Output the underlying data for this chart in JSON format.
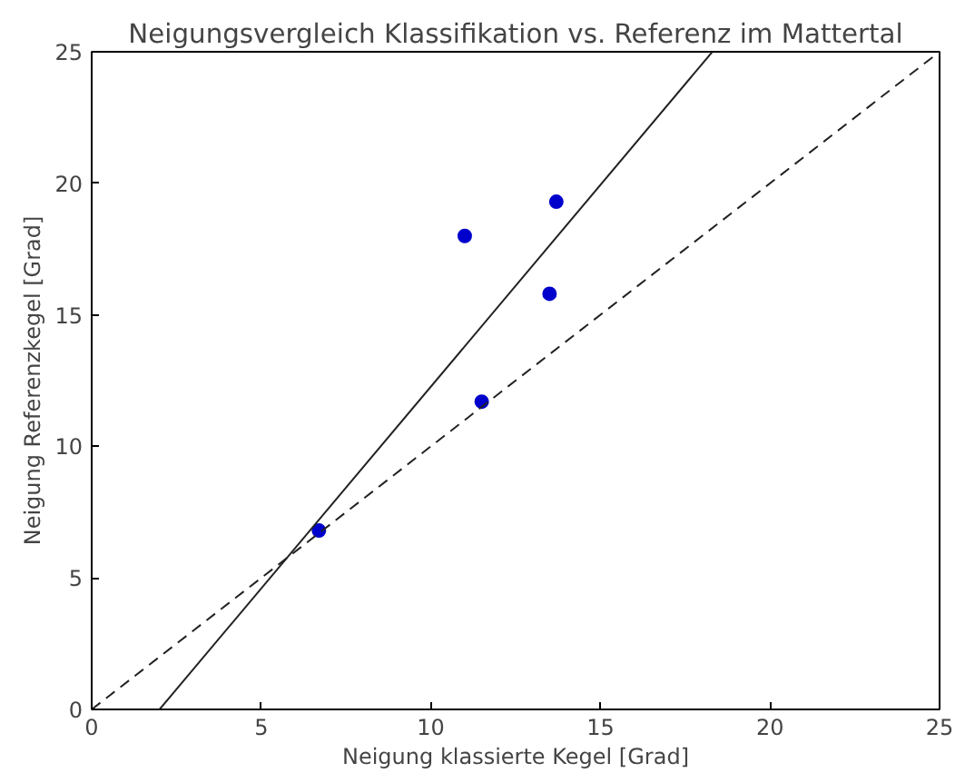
{
  "chart_data": {
    "type": "scatter",
    "title": "Neigungsvergleich Klassifikation vs. Referenz im Mattertal",
    "xlabel": "Neigung klassierte Kegel [Grad]",
    "ylabel": "Neigung Referenzkegel [Grad]",
    "xlim": [
      0,
      25
    ],
    "ylim": [
      0,
      25
    ],
    "xticks": [
      0,
      5,
      10,
      15,
      20,
      25
    ],
    "yticks": [
      0,
      5,
      10,
      15,
      20,
      25
    ],
    "grid": false,
    "marker": "circle",
    "series": [
      {
        "color": "#0000cc",
        "x": [
          6.7,
          11.5,
          11.0,
          13.5,
          13.7
        ],
        "values": [
          6.8,
          11.7,
          18.0,
          15.8,
          19.3
        ]
      },
      {
        "type": "line",
        "color": "#222222",
        "line_style": "solid",
        "marker": "none",
        "x": [
          2.0,
          18.3
        ],
        "values": [
          0,
          25
        ]
      },
      {
        "type": "line",
        "color": "#222222",
        "line_style": "dashed",
        "marker": "none",
        "x": [
          0,
          25
        ],
        "values": [
          0,
          25
        ]
      }
    ]
  }
}
